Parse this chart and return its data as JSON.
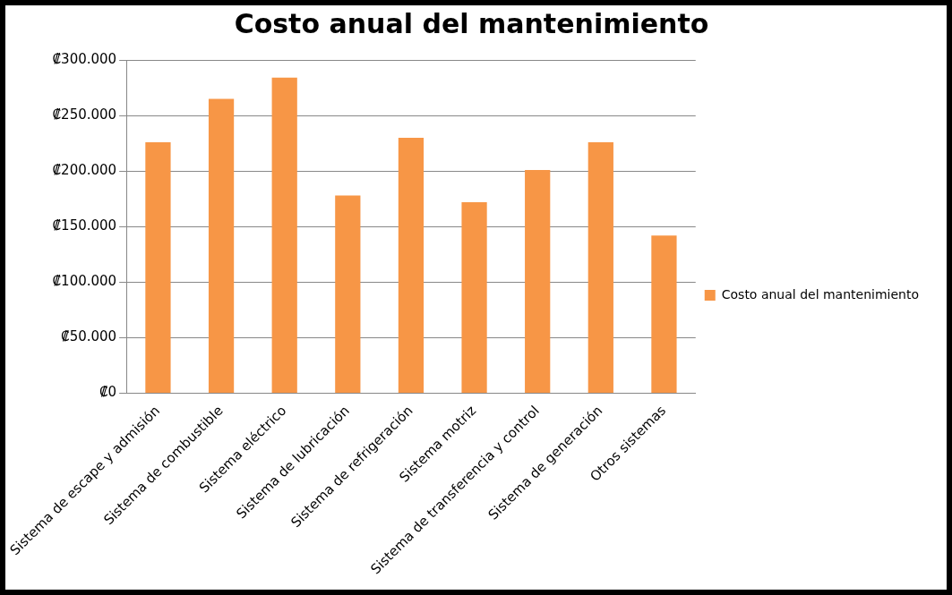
{
  "chart_data": {
    "type": "bar",
    "title": "Costo anual del mantenimiento",
    "categories": [
      "Sistema de escape y admisión",
      "Sistema de combustible",
      "Sistema eléctrico",
      "Sistema de lubricación",
      "Sistema de refrigeración",
      "Sistema motriz",
      "Sistema de transferencia y control",
      "Sistema de generación",
      "Otros sistemas"
    ],
    "series": [
      {
        "name": "Costo anual del mantenimiento",
        "color": "#f79646",
        "values": [
          226000,
          265000,
          284000,
          178000,
          230000,
          172000,
          201000,
          226000,
          142000
        ]
      }
    ],
    "ylim": [
      0,
      300000
    ],
    "yticks": [
      {
        "value": 0,
        "label": "₡0"
      },
      {
        "value": 50000,
        "label": "₡50.000"
      },
      {
        "value": 100000,
        "label": "₡100.000"
      },
      {
        "value": 150000,
        "label": "₡150.000"
      },
      {
        "value": 200000,
        "label": "₡200.000"
      },
      {
        "value": 250000,
        "label": "₡250.000"
      },
      {
        "value": 300000,
        "label": "₡300.000"
      }
    ],
    "grid": "y",
    "legend": "right"
  }
}
